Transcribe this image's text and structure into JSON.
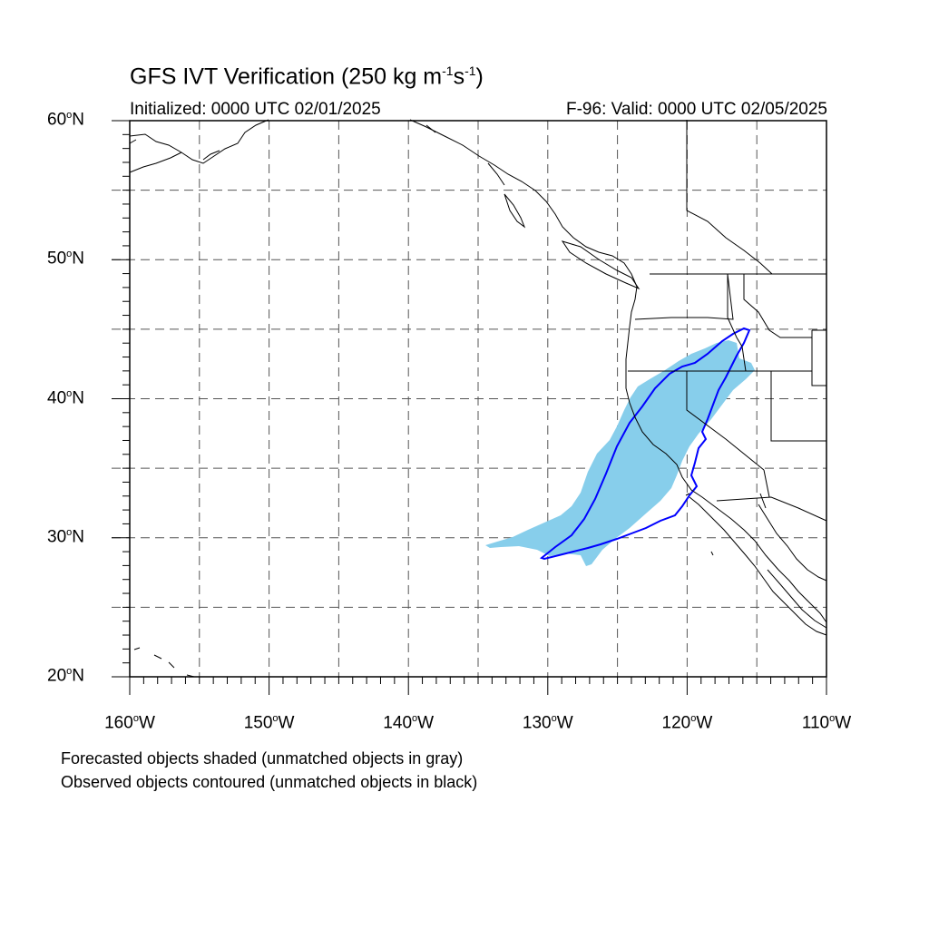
{
  "title": {
    "main": "GFS IVT Verification (250 kg m",
    "sup1": "-1",
    "mid": "s",
    "sup2": "-1",
    "end": ")"
  },
  "subtitle_left": "Initialized: 0000 UTC 02/01/2025",
  "subtitle_right": "F-96: Valid: 0000 UTC 02/05/2025",
  "map": {
    "lon_range": [
      -160,
      -110
    ],
    "lat_range": [
      20,
      60
    ],
    "grid_lines": "dashed",
    "grid_interval_deg": 5,
    "lat_labels": [
      {
        "value": "60",
        "suffix": "N"
      },
      {
        "value": "50",
        "suffix": "N"
      },
      {
        "value": "40",
        "suffix": "N"
      },
      {
        "value": "30",
        "suffix": "N"
      },
      {
        "value": "20",
        "suffix": "N"
      }
    ],
    "lon_labels": [
      {
        "value": "160",
        "suffix": "W"
      },
      {
        "value": "150",
        "suffix": "W"
      },
      {
        "value": "140",
        "suffix": "W"
      },
      {
        "value": "130",
        "suffix": "W"
      },
      {
        "value": "120",
        "suffix": "W"
      },
      {
        "value": "110",
        "suffix": "W"
      }
    ],
    "forecast_object_color": "#87ceeb",
    "observed_contour_color": "#0000ff",
    "coastline_color": "#000000"
  },
  "footnotes": {
    "line1": "Forecasted objects shaded (unmatched objects in gray)",
    "line2": "Observed objects contoured (unmatched objects in black)"
  }
}
